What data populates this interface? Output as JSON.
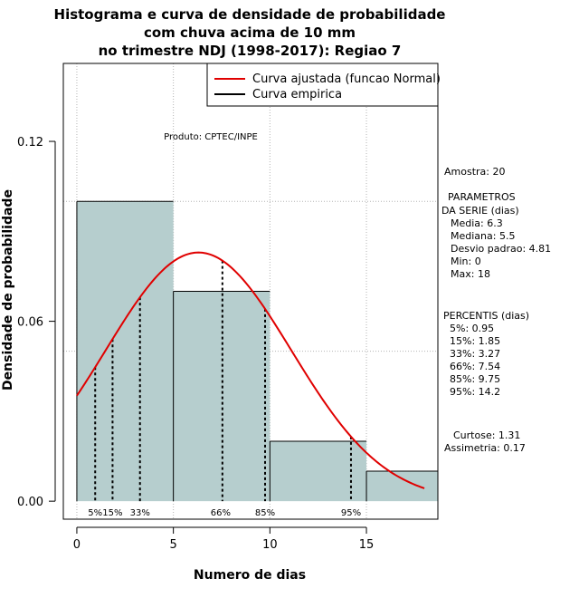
{
  "chart_data": {
    "type": "histogram",
    "title_lines": [
      "Histograma e curva de densidade de probabilidade",
      "com chuva acima de 10 mm",
      "no trimestre NDJ (1998-2017): Regiao 7"
    ],
    "xlabel": "Numero de dias",
    "ylabel": "Densidade de probabilidade",
    "xlim": [
      -0.7,
      18.7
    ],
    "ylim": [
      -0.006,
      0.146
    ],
    "x_ticks": [
      0,
      5,
      10,
      15
    ],
    "x_tick_labels": [
      "0",
      "5",
      "10",
      "15"
    ],
    "y_ticks": [
      0.0,
      0.06,
      0.12
    ],
    "y_tick_labels": [
      "0.00",
      "0.06",
      "0.12"
    ],
    "grid_x": [
      0,
      5,
      10,
      15
    ],
    "grid_y": [
      0.05,
      0.1
    ],
    "bins": [
      {
        "start": 0,
        "end": 5,
        "density": 0.1
      },
      {
        "start": 5,
        "end": 10,
        "density": 0.07
      },
      {
        "start": 10,
        "end": 15,
        "density": 0.02
      },
      {
        "start": 15,
        "end": 20,
        "density": 0.01
      }
    ],
    "bar_color": "#b6cece",
    "normal_curve": {
      "mean": 6.3,
      "sd": 4.81,
      "x_from": 0,
      "x_to": 18,
      "color": "#e00000"
    },
    "percentile_lines": [
      {
        "label": "5%",
        "x": 0.95
      },
      {
        "label": "15%",
        "x": 1.85
      },
      {
        "label": "33%",
        "x": 3.27
      },
      {
        "label": "66%",
        "x": 7.54
      },
      {
        "label": "85%",
        "x": 9.75
      },
      {
        "label": "95%",
        "x": 14.2
      }
    ],
    "legend": [
      {
        "label": "Curva ajustada (funcao Normal)",
        "color": "#e00000"
      },
      {
        "label": "Curva empirica",
        "color": "#000000"
      }
    ],
    "legend_position": "top-right",
    "annotation": "Produto: CPTEC/INPE"
  },
  "stats": {
    "sample": "Amostra: 20",
    "params_title_1": "PARAMETROS",
    "params_title_2": "DA SERIE (dias)",
    "params": [
      "Media: 6.3",
      "Mediana: 5.5",
      "Desvio padrao: 4.81",
      "Min: 0",
      "Max: 18"
    ],
    "percentis_title": "PERCENTIS (dias)",
    "percentis": [
      "5%: 0.95",
      "15%: 1.85",
      "33%: 3.27",
      "66%: 7.54",
      "85%: 9.75",
      "95%: 14.2"
    ],
    "curtose": "Curtose: 1.31",
    "assimetria": "Assimetria: 0.17"
  }
}
